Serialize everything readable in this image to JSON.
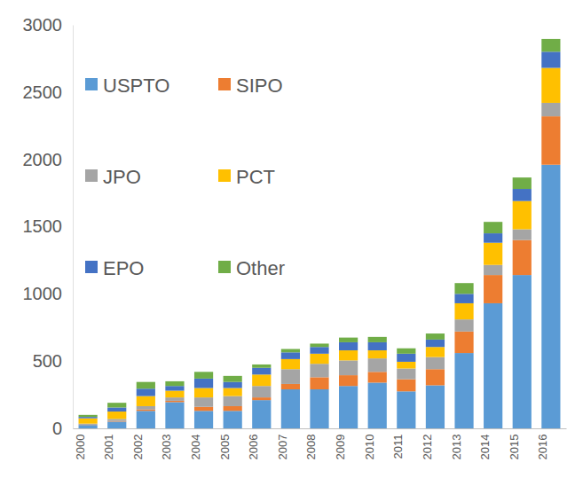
{
  "chart_data": {
    "type": "bar",
    "stacked": true,
    "legend": "upper left",
    "grid": false,
    "categories": [
      "2000",
      "2001",
      "2002",
      "2003",
      "2004",
      "2005",
      "2006",
      "2007",
      "2008",
      "2009",
      "2010",
      "2011",
      "2012",
      "2013",
      "2014",
      "2015",
      "2016"
    ],
    "ylim": [
      0,
      3000
    ],
    "yticks": [
      0,
      500,
      1000,
      1500,
      2000,
      2500,
      3000
    ],
    "series": [
      {
        "name": "USPTO",
        "color": "#5b9bd5",
        "values": [
          25,
          50,
          130,
          195,
          130,
          130,
          210,
          290,
          290,
          315,
          340,
          275,
          320,
          560,
          930,
          1140,
          1960
        ]
      },
      {
        "name": "SIPO",
        "color": "#ed7d31",
        "values": [
          2,
          5,
          10,
          10,
          30,
          35,
          20,
          40,
          90,
          80,
          80,
          90,
          120,
          160,
          210,
          260,
          360
        ]
      },
      {
        "name": "JPO",
        "color": "#a5a5a5",
        "values": [
          8,
          15,
          25,
          25,
          70,
          75,
          85,
          110,
          100,
          110,
          100,
          80,
          90,
          90,
          75,
          80,
          100
        ]
      },
      {
        "name": "PCT",
        "color": "#ffc000",
        "values": [
          40,
          55,
          75,
          50,
          70,
          60,
          85,
          75,
          75,
          75,
          60,
          50,
          75,
          120,
          165,
          210,
          260
        ]
      },
      {
        "name": "EPO",
        "color": "#4472c4",
        "values": [
          10,
          30,
          55,
          35,
          70,
          45,
          50,
          50,
          50,
          60,
          60,
          60,
          55,
          70,
          70,
          90,
          120
        ]
      },
      {
        "name": "Other",
        "color": "#70ad47",
        "values": [
          15,
          35,
          50,
          35,
          50,
          45,
          25,
          25,
          25,
          35,
          40,
          40,
          45,
          80,
          85,
          85,
          95
        ]
      }
    ]
  }
}
